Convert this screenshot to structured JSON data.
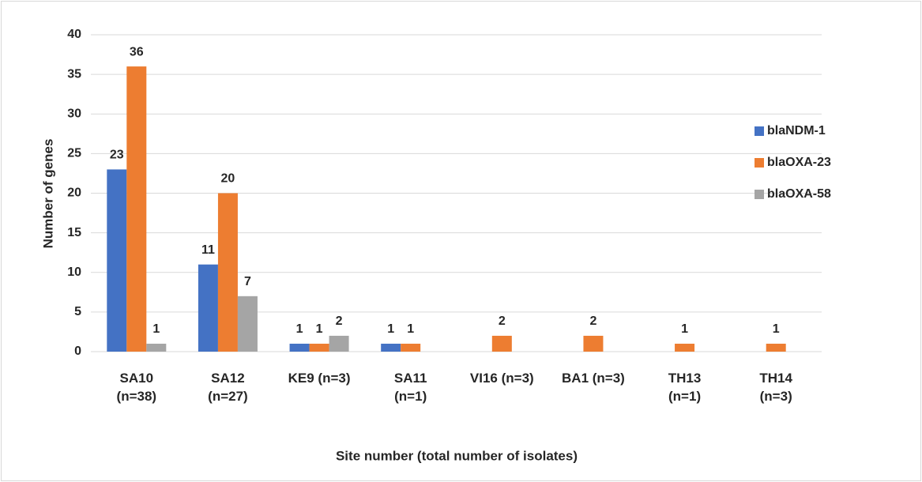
{
  "chart_data": {
    "type": "bar",
    "x_label": "Site number (total number of isolates)",
    "y_label": "Number of genes",
    "categories": [
      "SA10\n(n=38)",
      "SA12\n(n=27)",
      "KE9 (n=3)",
      "SA11\n(n=1)",
      "VI16 (n=3)",
      "BA1 (n=3)",
      "TH13\n(n=1)",
      "TH14\n(n=3)"
    ],
    "series": [
      {
        "name": "blaNDM-1",
        "color": "#4472c4",
        "values": [
          23,
          11,
          1,
          1,
          null,
          null,
          null,
          null
        ]
      },
      {
        "name": "blaOXA-23",
        "color": "#ed7d31",
        "values": [
          36,
          20,
          1,
          1,
          2,
          2,
          1,
          1
        ]
      },
      {
        "name": "blaOXA-58",
        "color": "#a5a5a5",
        "values": [
          1,
          7,
          2,
          null,
          null,
          null,
          null,
          null
        ]
      }
    ],
    "ylim": [
      0,
      40
    ],
    "yticks": [
      0,
      5,
      10,
      15,
      20,
      25,
      30,
      35,
      40
    ],
    "grid": true,
    "legend": "right"
  }
}
